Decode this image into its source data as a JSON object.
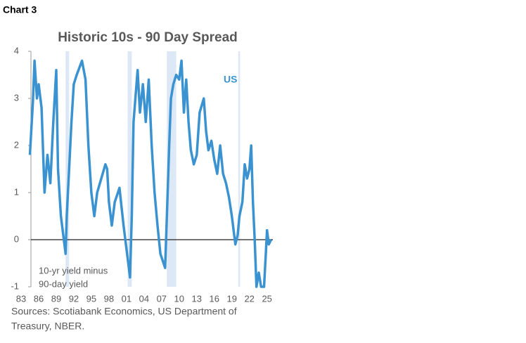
{
  "header": "Chart 3",
  "chart_data": {
    "type": "line",
    "title": "Historic 10s - 90 Day Spread",
    "annotations": [
      "US",
      "10-yr yield minus",
      "90-day yield"
    ],
    "source": [
      "Sources: Scotiabank Economics, US Department of",
      "Treasury, NBER."
    ],
    "xlim": [
      1983,
      2026
    ],
    "ylim": [
      -1,
      4
    ],
    "yticks": [
      -1,
      0,
      1,
      2,
      3,
      4
    ],
    "xticks": [
      {
        "value": 1983,
        "label": "83"
      },
      {
        "value": 1986,
        "label": "86"
      },
      {
        "value": 1989,
        "label": "89"
      },
      {
        "value": 1992,
        "label": "92"
      },
      {
        "value": 1995,
        "label": "95"
      },
      {
        "value": 1998,
        "label": "98"
      },
      {
        "value": 2001,
        "label": "01"
      },
      {
        "value": 2004,
        "label": "04"
      },
      {
        "value": 2007,
        "label": "07"
      },
      {
        "value": 2010,
        "label": "10"
      },
      {
        "value": 2013,
        "label": "13"
      },
      {
        "value": 2016,
        "label": "16"
      },
      {
        "value": 2019,
        "label": "19"
      },
      {
        "value": 2022,
        "label": "22"
      },
      {
        "value": 2025,
        "label": "25"
      }
    ],
    "recessions": [
      [
        1990.6,
        1991.2
      ],
      [
        2001.2,
        2001.9
      ],
      [
        2007.9,
        2009.5
      ],
      [
        2020.1,
        2020.4
      ]
    ],
    "recession_color": "#dce8f6",
    "series": [
      {
        "name": "US",
        "color": "#3a93d0",
        "x": [
          1984.5,
          1985.0,
          1985.3,
          1985.7,
          1986.0,
          1986.5,
          1987.0,
          1987.5,
          1988.0,
          1988.5,
          1989.0,
          1989.3,
          1989.8,
          1990.6,
          1990.8,
          1991.2,
          1991.6,
          1992.0,
          1992.5,
          1993.4,
          1994.0,
          1994.5,
          1995.0,
          1995.5,
          1996.0,
          1997.4,
          1997.7,
          1998.0,
          1998.5,
          1999.0,
          1999.8,
          2000.5,
          2001.6,
          2001.9,
          2002.2,
          2002.9,
          2003.3,
          2003.8,
          2004.3,
          2004.8,
          2005.3,
          2005.8,
          2006.3,
          2006.8,
          2007.6,
          2007.9,
          2008.3,
          2008.6,
          2009.0,
          2009.5,
          2010.0,
          2010.4,
          2010.8,
          2011.2,
          2011.6,
          2012.0,
          2012.5,
          2013.0,
          2013.5,
          2014.2,
          2014.6,
          2015.0,
          2015.5,
          2016.0,
          2016.5,
          2017.0,
          2017.5,
          2018.0,
          2018.5,
          2019.0,
          2019.6,
          2020.0,
          2020.3,
          2020.8,
          2021.2,
          2021.6,
          2022.0,
          2022.3,
          2022.6,
          2022.9,
          2023.2,
          2023.6,
          2024.0,
          2024.5,
          2024.8,
          2025.0,
          2025.3,
          2025.7
        ],
        "values": [
          1.8,
          2.9,
          3.8,
          3.0,
          3.3,
          2.8,
          1.0,
          1.8,
          1.2,
          2.5,
          3.6,
          1.5,
          0.5,
          -0.3,
          0.5,
          1.5,
          2.5,
          3.3,
          3.5,
          3.8,
          3.4,
          2.0,
          1.0,
          0.5,
          1.0,
          1.6,
          1.5,
          0.8,
          0.3,
          0.8,
          1.1,
          0.3,
          -0.8,
          0.5,
          2.5,
          3.6,
          2.7,
          3.3,
          2.5,
          3.4,
          2.0,
          1.0,
          0.3,
          -0.3,
          -0.6,
          0.5,
          2.0,
          3.0,
          3.3,
          3.5,
          3.4,
          3.8,
          2.7,
          3.4,
          2.5,
          1.9,
          1.6,
          1.8,
          2.7,
          3.0,
          2.3,
          1.9,
          2.1,
          1.7,
          1.4,
          2.0,
          1.4,
          1.2,
          0.9,
          0.5,
          -0.1,
          0.1,
          0.5,
          0.8,
          1.6,
          1.3,
          1.5,
          2.0,
          0.8,
          0.0,
          -1.0,
          -0.7,
          -1.0,
          -1.0,
          -0.3,
          0.2,
          -0.1,
          0.0
        ]
      }
    ]
  }
}
